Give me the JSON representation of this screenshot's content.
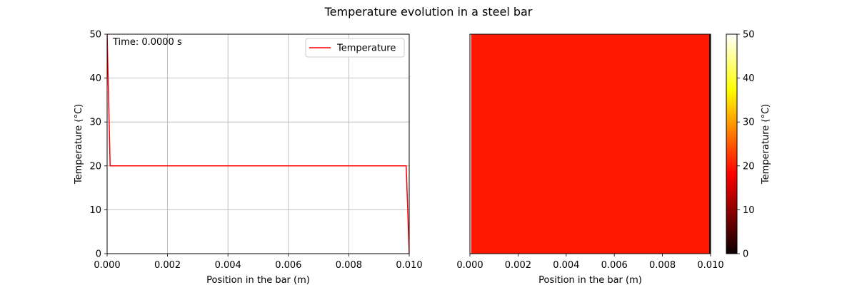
{
  "figure": {
    "title": "Temperature evolution in a steel bar"
  },
  "chart_data": [
    {
      "type": "line",
      "title": "",
      "xlabel": "Position in the bar (m)",
      "ylabel": "Temperature (°C)",
      "xlim": [
        0,
        0.01
      ],
      "ylim": [
        0,
        50
      ],
      "x_ticks": [
        "0.000",
        "0.002",
        "0.004",
        "0.006",
        "0.008",
        "0.010"
      ],
      "y_ticks": [
        "0",
        "10",
        "20",
        "30",
        "40",
        "50"
      ],
      "x_tick_values": [
        0,
        0.002,
        0.004,
        0.006,
        0.008,
        0.01
      ],
      "y_tick_values": [
        0,
        10,
        20,
        30,
        40,
        50
      ],
      "grid": true,
      "legend": "top-right",
      "annotation": "Time: 0.0000 s",
      "series": [
        {
          "name": "Temperature",
          "color": "#ff0000",
          "x": [
            0,
            0.0001,
            0.0099,
            0.01
          ],
          "y": [
            50,
            20,
            20,
            0
          ]
        }
      ]
    },
    {
      "type": "heatmap",
      "title": "",
      "xlabel": "Position in the bar (m)",
      "xlim": [
        0,
        0.01
      ],
      "x_ticks": [
        "0.000",
        "0.002",
        "0.004",
        "0.006",
        "0.008",
        "0.010"
      ],
      "x_tick_values": [
        0,
        0.002,
        0.004,
        0.006,
        0.008,
        0.01
      ],
      "colormap": "hot",
      "x": [
        0,
        0.0001,
        0.0099,
        0.01
      ],
      "values": [
        50,
        20,
        20,
        0
      ],
      "colorbar": {
        "label": "Temperature (°C)",
        "range": [
          0,
          50
        ],
        "ticks": [
          "0",
          "10",
          "20",
          "30",
          "40",
          "50"
        ],
        "tick_values": [
          0,
          10,
          20,
          30,
          40,
          50
        ]
      }
    }
  ]
}
